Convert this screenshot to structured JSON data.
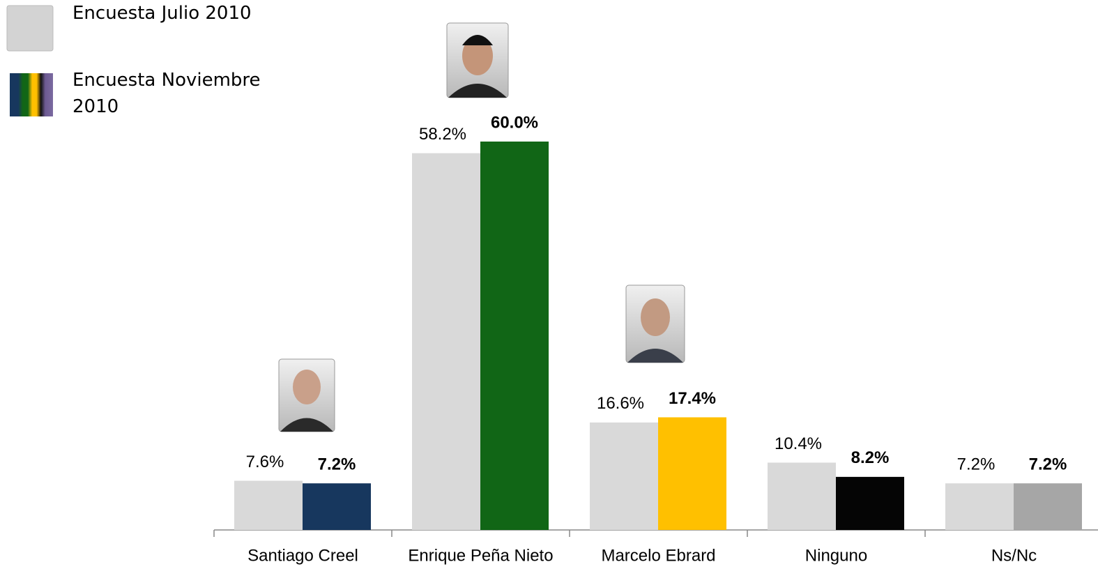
{
  "chart_data": {
    "type": "bar",
    "categories": [
      "Santiago Creel",
      "Enrique Peña Nieto",
      "Marcelo Ebrard",
      "Ninguno",
      "Ns/Nc"
    ],
    "series": [
      {
        "name": "Encuesta Julio 2010",
        "color": "#d9d9d9",
        "values": [
          7.6,
          58.2,
          16.6,
          10.4,
          7.2
        ],
        "value_labels": [
          "7.6%",
          "58.2%",
          "16.6%",
          "10.4%",
          "7.2%"
        ]
      },
      {
        "name": "Encuesta Noviembre 2010",
        "colors": [
          "#17375e",
          "#116616",
          "#ffc000",
          "#050505",
          "#a6a6a6"
        ],
        "values": [
          7.2,
          60.0,
          17.4,
          8.2,
          7.2
        ],
        "value_labels": [
          "7.2%",
          "60.0%",
          "17.4%",
          "8.2%",
          "7.2%"
        ]
      }
    ],
    "ylim": [
      0,
      60
    ]
  }
}
